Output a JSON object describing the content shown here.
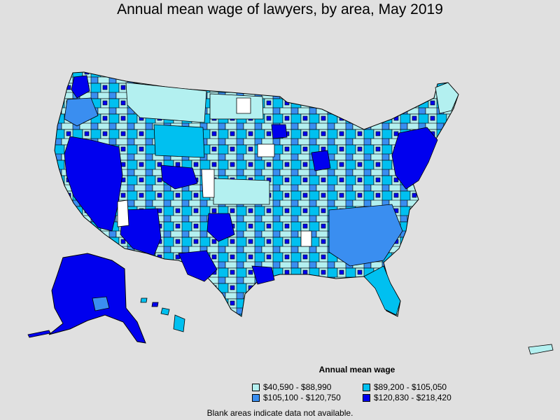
{
  "title": "Annual mean wage of lawyers, by area, May 2019",
  "legend": {
    "title": "Annual mean wage",
    "items": [
      {
        "label": "$40,590 - $88,990",
        "color": "#b3f0f0"
      },
      {
        "label": "$89,200 - $105,050",
        "color": "#00c0f0"
      },
      {
        "label": "$105,100 - $120,750",
        "color": "#3a8ef0"
      },
      {
        "label": "$120,830 - $218,420",
        "color": "#0000ee"
      }
    ]
  },
  "footnote": "Blank areas indicate data not available.",
  "colors": {
    "background": "#e0e0e0",
    "no_data": "#ffffff",
    "border": "#000000"
  }
}
